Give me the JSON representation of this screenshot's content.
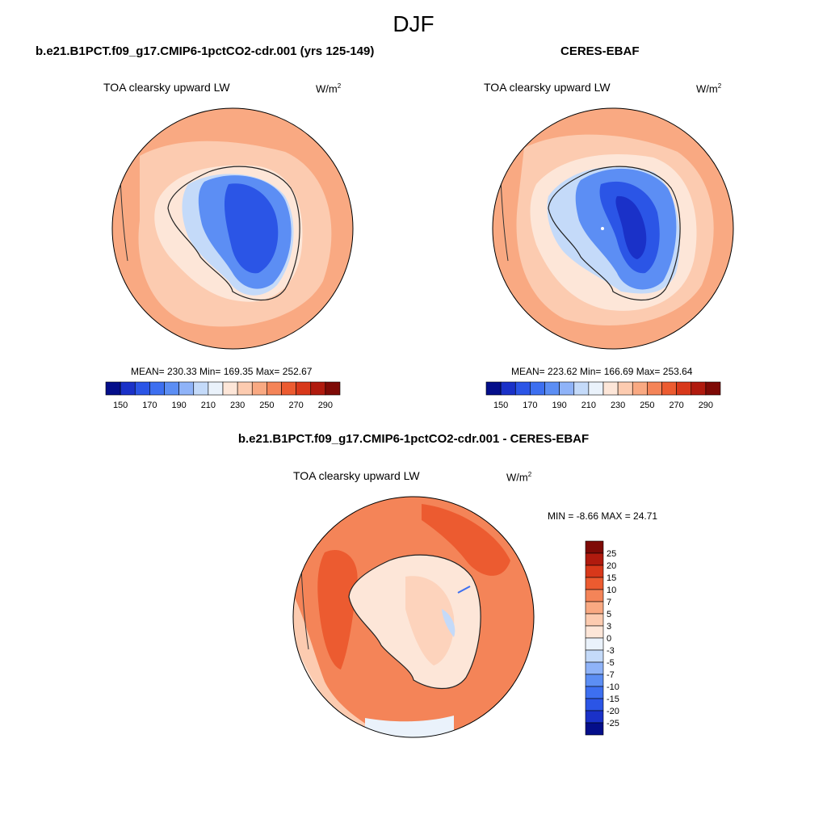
{
  "season": "DJF",
  "panels": [
    {
      "title": "b.e21.B1PCT.f09_g17.CMIP6-1pctCO2-cdr.001 (yrs 125-149)",
      "variable": "TOA clearsky upward LW",
      "units": "W/m",
      "units_exp": "2",
      "stats": "MEAN= 230.33  Min= 169.35  Max= 252.67",
      "colorbar": {
        "colors": [
          "#040e8a",
          "#1a31c8",
          "#2b55e6",
          "#3d6ff0",
          "#5c8ef4",
          "#8fb3f8",
          "#c4daf9",
          "#eaf2fb",
          "#fde6d8",
          "#fccbb0",
          "#f9a982",
          "#f48458",
          "#ec5b30",
          "#d8381a",
          "#b01a0e",
          "#7e0a06"
        ],
        "labels": [
          "150",
          "170",
          "190",
          "210",
          "230",
          "250",
          "270",
          "290"
        ]
      }
    },
    {
      "title": "CERES-EBAF",
      "variable": "TOA clearsky upward LW",
      "units": "W/m",
      "units_exp": "2",
      "stats": "MEAN= 223.62  Min= 166.69  Max= 253.64",
      "colorbar": {
        "colors": [
          "#040e8a",
          "#1a31c8",
          "#2b55e6",
          "#3d6ff0",
          "#5c8ef4",
          "#8fb3f8",
          "#c4daf9",
          "#eaf2fb",
          "#fde6d8",
          "#fccbb0",
          "#f9a982",
          "#f48458",
          "#ec5b30",
          "#d8381a",
          "#b01a0e",
          "#7e0a06"
        ],
        "labels": [
          "150",
          "170",
          "190",
          "210",
          "230",
          "250",
          "270",
          "290"
        ]
      }
    }
  ],
  "difference": {
    "title": "b.e21.B1PCT.f09_g17.CMIP6-1pctCO2-cdr.001 - CERES-EBAF",
    "variable": "TOA clearsky upward LW",
    "units": "W/m",
    "units_exp": "2",
    "minmax": "MIN =  -8.66 MAX =  24.71",
    "colorbar": {
      "colors": [
        "#7e0a06",
        "#b01a0e",
        "#d8381a",
        "#ec5b30",
        "#f48458",
        "#f9a982",
        "#fccbb0",
        "#fde6d8",
        "#eaf2fb",
        "#c4daf9",
        "#8fb3f8",
        "#5c8ef4",
        "#3d6ff0",
        "#2b55e6",
        "#1a31c8",
        "#040e8a"
      ],
      "labels": [
        "25",
        "20",
        "15",
        "10",
        "7",
        "5",
        "3",
        "0",
        "-3",
        "-5",
        "-7",
        "-10",
        "-15",
        "-20",
        "-25"
      ]
    }
  }
}
